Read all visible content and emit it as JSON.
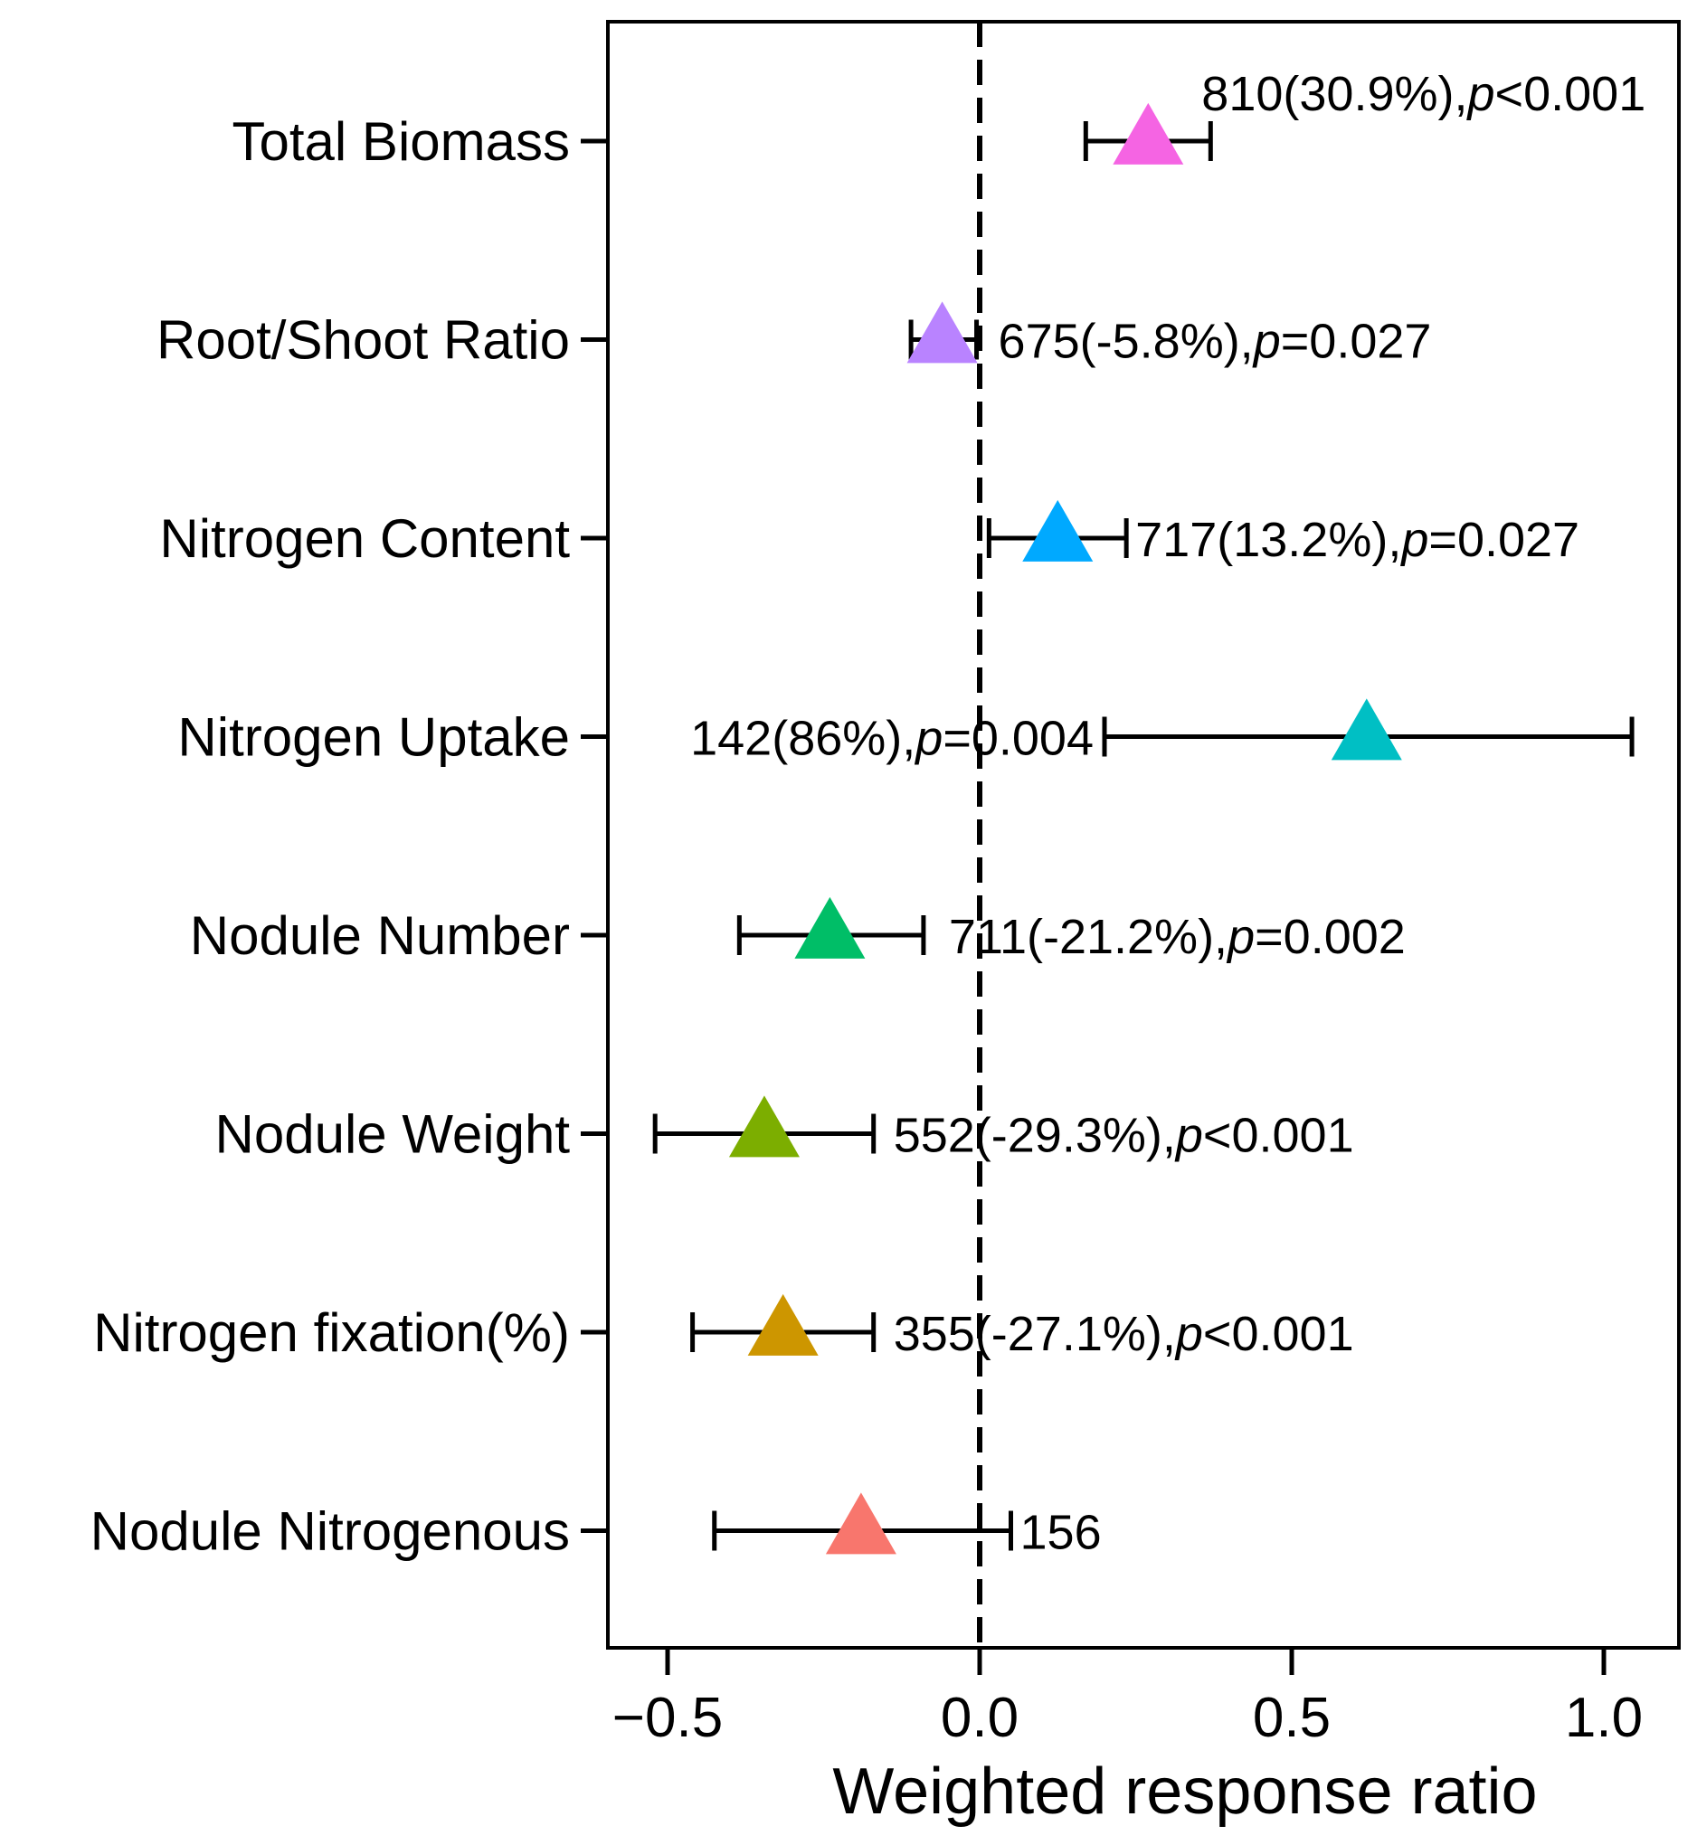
{
  "chart_data": {
    "type": "forest",
    "title": "",
    "xlabel": "Weighted response ratio",
    "ylabel": "",
    "xlim": [
      -0.6,
      1.12
    ],
    "x_ticks": [
      -0.5,
      0.0,
      0.5,
      1.0
    ],
    "x_tick_labels": [
      "−0.5",
      "0.0",
      "0.5",
      "1.0"
    ],
    "reference_line": 0.0,
    "grid": false,
    "marker": "triangle",
    "rows": [
      {
        "label": "Total Biomass",
        "estimate": 0.27,
        "ci": [
          0.17,
          0.37
        ],
        "n": "810",
        "pct": "(30.9%),",
        "p_op": "<",
        "p_val": "0.001",
        "color": "#F564E3"
      },
      {
        "label": "Root/Shoot Ratio",
        "estimate": -0.06,
        "ci": [
          -0.11,
          -0.005
        ],
        "n": "675",
        "pct": "(-5.8%),",
        "p_op": "=",
        "p_val": "0.027",
        "color": "#B983FF"
      },
      {
        "label": "Nitrogen Content",
        "estimate": 0.125,
        "ci": [
          0.015,
          0.235
        ],
        "n": "717",
        "pct": "(13.2%),",
        "p_op": "=",
        "p_val": "0.027",
        "color": "#00A9FF"
      },
      {
        "label": "Nitrogen Uptake",
        "estimate": 0.62,
        "ci": [
          0.2,
          1.045
        ],
        "n": "142",
        "pct": "(86%),",
        "p_op": "=",
        "p_val": "0.004",
        "color": "#00BFC4"
      },
      {
        "label": "Nodule Number",
        "estimate": -0.24,
        "ci": [
          -0.385,
          -0.09
        ],
        "n": "711",
        "pct": "(-21.2%),",
        "p_op": "=",
        "p_val": "0.002",
        "color": "#00BE67"
      },
      {
        "label": "Nodule Weight",
        "estimate": -0.345,
        "ci": [
          -0.52,
          -0.17
        ],
        "n": "552",
        "pct": "(-29.3%),",
        "p_op": "<",
        "p_val": "0.001",
        "color": "#7CAE00"
      },
      {
        "label": "Nitrogen fixation(%)",
        "estimate": -0.315,
        "ci": [
          -0.46,
          -0.17
        ],
        "n": "355",
        "pct": "(-27.1%),",
        "p_op": "<",
        "p_val": "0.001",
        "color": "#CD9600"
      },
      {
        "label": "Nodule Nitrogenous",
        "estimate": -0.19,
        "ci": [
          -0.425,
          0.05
        ],
        "n": "156",
        "pct": "",
        "p_op": "",
        "p_val": "",
        "color": "#F8766D"
      }
    ],
    "p_symbol": "p"
  }
}
